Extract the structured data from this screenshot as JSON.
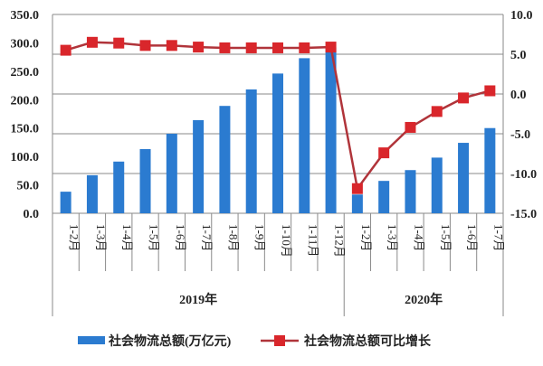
{
  "chart_data": {
    "type": "bar+line",
    "categories": [
      "1-2月",
      "1-3月",
      "1-4月",
      "1-5月",
      "1-6月",
      "1-7月",
      "1-8月",
      "1-9月",
      "1-10月",
      "1-11月",
      "1-12月",
      "1-2月",
      "1-3月",
      "1-4月",
      "1-5月",
      "1-6月",
      "1-7月"
    ],
    "groups": [
      {
        "label": "2019年",
        "count": 11
      },
      {
        "label": "2020年",
        "count": 6
      }
    ],
    "series": [
      {
        "name": "社会物流总额(万亿元)",
        "type": "bar",
        "axis": "left",
        "color": "#2b7bd0",
        "values": [
          38,
          67,
          91,
          113,
          140,
          164,
          189,
          218,
          246,
          273,
          292,
          33,
          57,
          76,
          98,
          124,
          150
        ]
      },
      {
        "name": "社会物流总额可比增长",
        "type": "line",
        "axis": "right",
        "color": "#d9262b",
        "values": [
          5.5,
          6.5,
          6.4,
          6.1,
          6.1,
          5.9,
          5.8,
          5.8,
          5.8,
          5.8,
          5.9,
          -11.9,
          -7.4,
          -4.2,
          -2.2,
          -0.5,
          0.4
        ]
      }
    ],
    "y_left": {
      "ylim": [
        0,
        350
      ],
      "ticks": [
        "0.0",
        "50.0",
        "100.0",
        "150.0",
        "200.0",
        "250.0",
        "300.0",
        "350.0"
      ]
    },
    "y_right": {
      "ylim": [
        -15,
        10
      ],
      "ticks": [
        "-15.0",
        "-10.0",
        "-5.0",
        "0.0",
        "5.0",
        "10.0"
      ]
    },
    "grid": true,
    "legend": "bottom"
  }
}
